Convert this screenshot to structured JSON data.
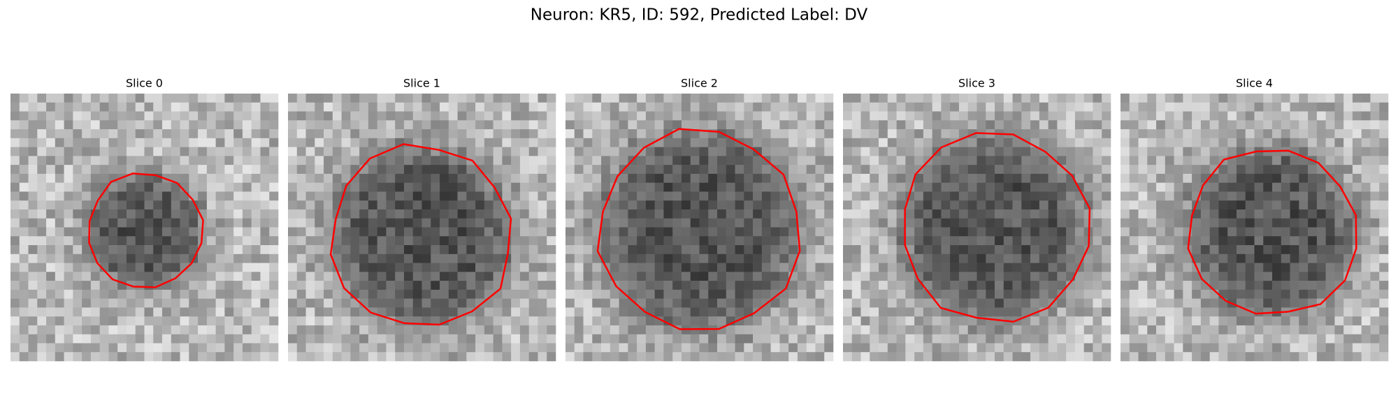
{
  "title": "Neuron: KR5, ID: 592, Predicted Label: DV",
  "panels": [
    {
      "title": "Slice 0"
    },
    {
      "title": "Slice 1"
    },
    {
      "title": "Slice 2"
    },
    {
      "title": "Slice 3"
    },
    {
      "title": "Slice 4"
    }
  ]
}
